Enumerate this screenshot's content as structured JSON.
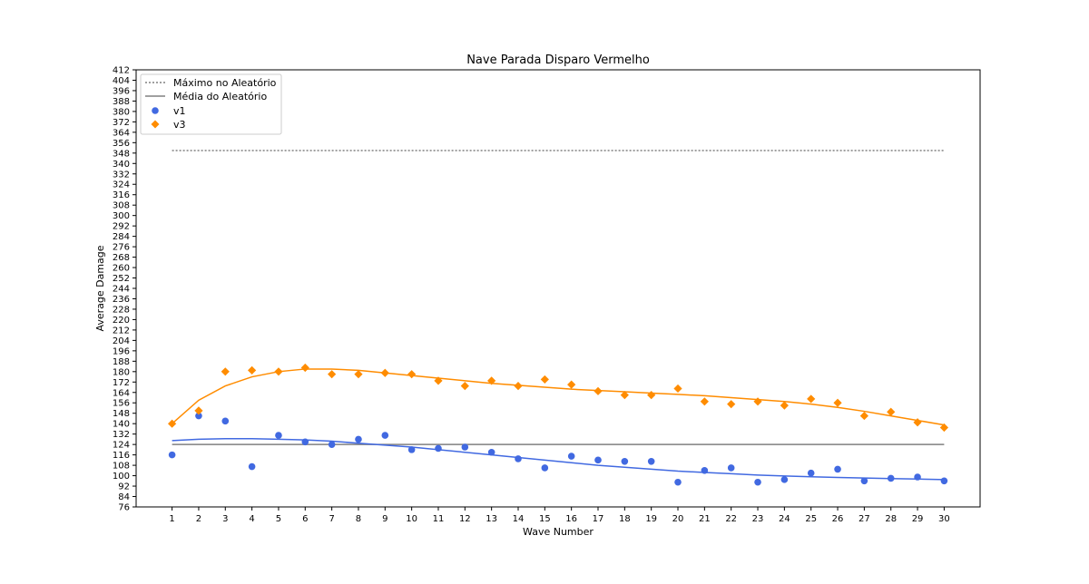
{
  "chart_data": {
    "type": "scatter",
    "title": "Nave Parada Disparo Vermelho",
    "xlabel": "Wave Number",
    "ylabel": "Average Damage",
    "xlim": [
      -0.35,
      31.35
    ],
    "ylim": [
      76,
      412
    ],
    "x_ticks": [
      1,
      2,
      3,
      4,
      5,
      6,
      7,
      8,
      9,
      10,
      11,
      12,
      13,
      14,
      15,
      16,
      17,
      18,
      19,
      20,
      21,
      22,
      23,
      24,
      25,
      26,
      27,
      28,
      29,
      30
    ],
    "y_tick_start": 76,
    "y_tick_step": 8,
    "grid": false,
    "legend_position": "top-left",
    "reference_lines": [
      {
        "name": "Máximo no Aleatório",
        "y": 350,
        "style": "dotted",
        "color": "#808080"
      },
      {
        "name": "Média do Aleatório",
        "y": 124,
        "style": "solid",
        "color": "#808080"
      }
    ],
    "series": [
      {
        "name": "v1",
        "marker": "circle",
        "color": "#4169e1",
        "x": [
          1,
          2,
          3,
          4,
          5,
          6,
          7,
          8,
          9,
          10,
          11,
          12,
          13,
          14,
          15,
          16,
          17,
          18,
          19,
          20,
          21,
          22,
          23,
          24,
          25,
          26,
          27,
          28,
          29,
          30
        ],
        "values": [
          116,
          146,
          142,
          107,
          131,
          126,
          124,
          128,
          131,
          120,
          121,
          122,
          118,
          113,
          106,
          115,
          112,
          111,
          111,
          95,
          104,
          106,
          95,
          97,
          102,
          105,
          96,
          98,
          99,
          96
        ],
        "trend": [
          127,
          128,
          128.5,
          128.5,
          128,
          127.5,
          126.5,
          125,
          123.5,
          122,
          120,
          118,
          116,
          114,
          112,
          110,
          108,
          106.5,
          105,
          103.5,
          102.5,
          101.5,
          100.5,
          99.8,
          99.2,
          98.7,
          98.2,
          97.8,
          97.4,
          97
        ]
      },
      {
        "name": "v3",
        "marker": "diamond",
        "color": "#ff8c00",
        "x": [
          1,
          2,
          3,
          4,
          5,
          6,
          7,
          8,
          9,
          10,
          11,
          12,
          13,
          14,
          15,
          16,
          17,
          18,
          19,
          20,
          21,
          22,
          23,
          24,
          25,
          26,
          27,
          28,
          29,
          30
        ],
        "values": [
          140,
          150,
          180,
          181,
          180,
          183,
          178,
          178,
          179,
          178,
          173,
          169,
          173,
          169,
          174,
          170,
          165,
          162,
          162,
          167,
          157,
          155,
          157,
          154,
          159,
          156,
          146,
          149,
          141,
          137
        ],
        "trend": [
          140,
          158,
          169,
          176,
          180,
          182,
          182,
          181,
          179,
          177,
          175,
          173,
          171,
          169.5,
          168,
          166.5,
          165.5,
          164.5,
          163.5,
          162.5,
          161.5,
          160,
          158.5,
          157,
          155,
          152.5,
          149.5,
          146,
          142.5,
          139
        ]
      }
    ]
  }
}
